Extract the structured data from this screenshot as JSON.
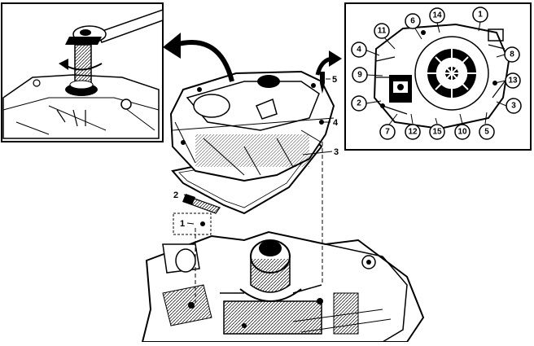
{
  "main_labels": [
    {
      "id": "1",
      "text": "1"
    },
    {
      "id": "2",
      "text": "2"
    },
    {
      "id": "3",
      "text": "3"
    },
    {
      "id": "4",
      "text": "4"
    },
    {
      "id": "5",
      "text": "5"
    }
  ],
  "callout_labels": [
    {
      "text": "14"
    },
    {
      "text": "1"
    },
    {
      "text": "6"
    },
    {
      "text": "11"
    },
    {
      "text": "4"
    },
    {
      "text": "8"
    },
    {
      "text": "9"
    },
    {
      "text": "13"
    },
    {
      "text": "2"
    },
    {
      "text": "3"
    },
    {
      "text": "7"
    },
    {
      "text": "12"
    },
    {
      "text": "15"
    },
    {
      "text": "10"
    },
    {
      "text": "5"
    }
  ]
}
